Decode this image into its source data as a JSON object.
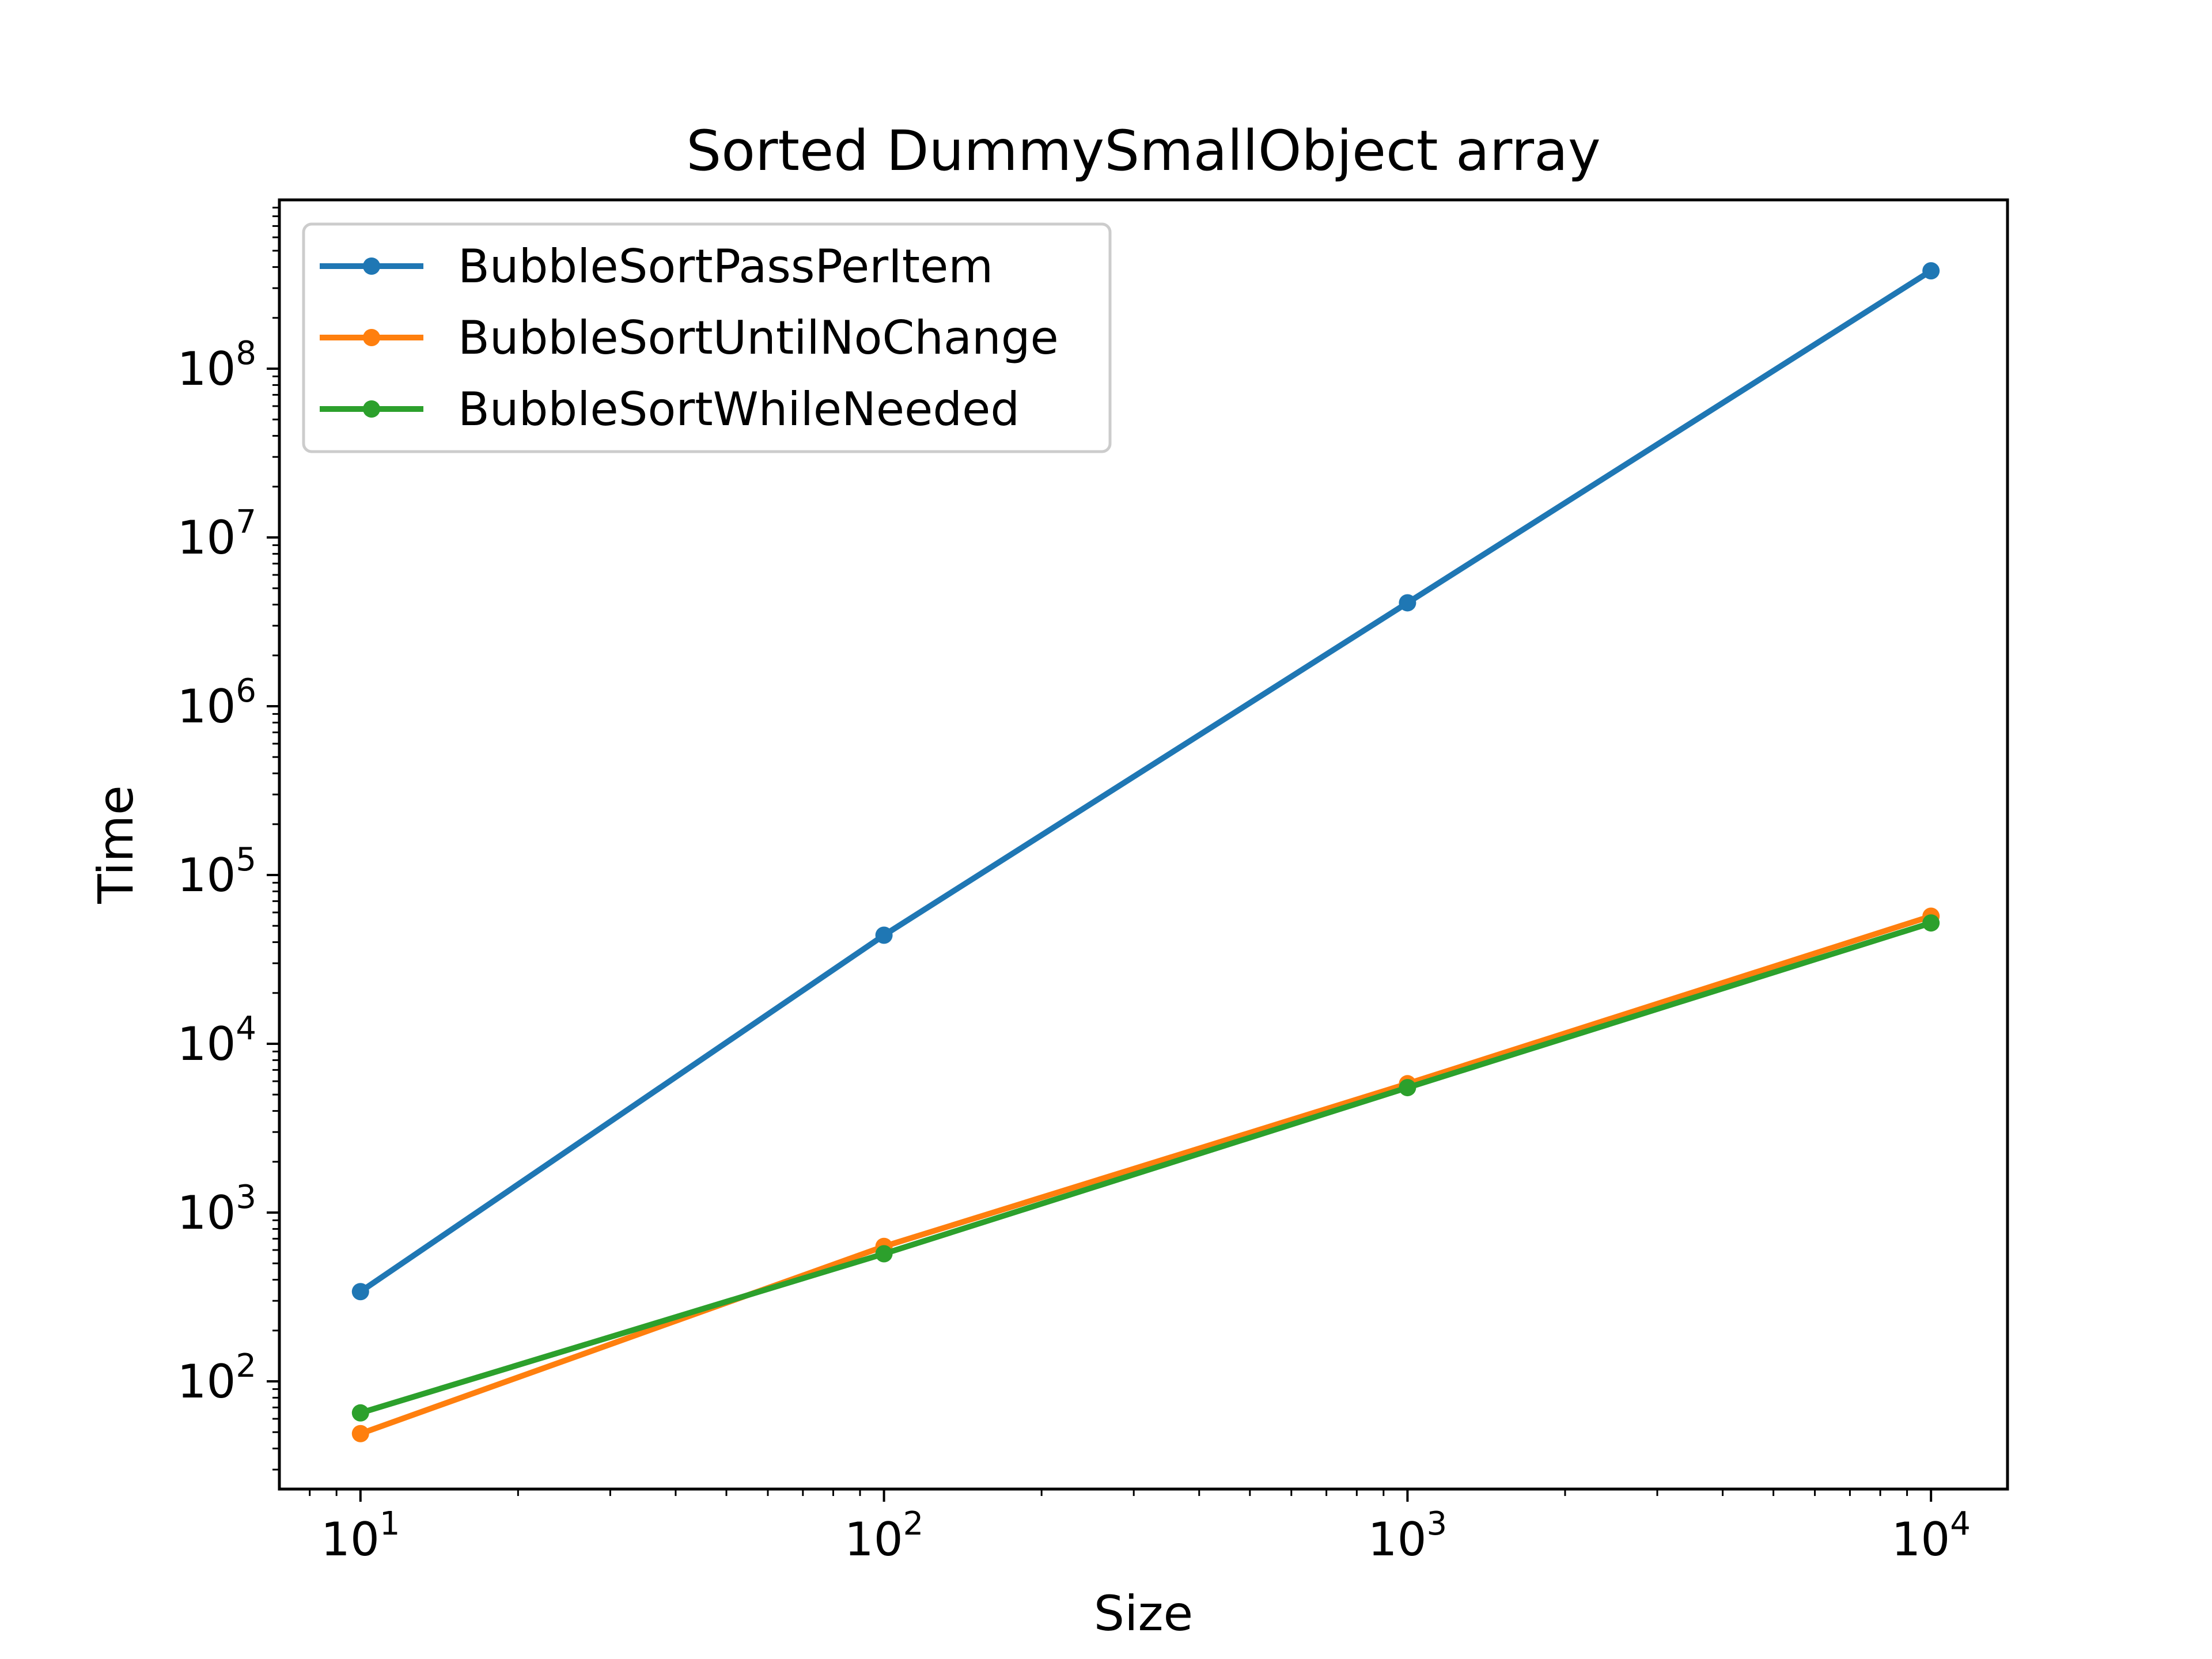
{
  "chart_data": {
    "type": "line",
    "title": "Sorted DummySmallObject array",
    "xlabel": "Size",
    "ylabel": "Time",
    "xscale": "log",
    "yscale": "log",
    "xlim": [
      7,
      14000
    ],
    "ylim": [
      23,
      1000000000
    ],
    "x": [
      10,
      100,
      1000,
      10000
    ],
    "xticks": [
      {
        "value": 10,
        "base": "10",
        "exp": "1"
      },
      {
        "value": 100,
        "base": "10",
        "exp": "2"
      },
      {
        "value": 1000,
        "base": "10",
        "exp": "3"
      },
      {
        "value": 10000,
        "base": "10",
        "exp": "4"
      }
    ],
    "yticks": [
      {
        "value": 100,
        "base": "10",
        "exp": "2"
      },
      {
        "value": 1000,
        "base": "10",
        "exp": "3"
      },
      {
        "value": 10000,
        "base": "10",
        "exp": "4"
      },
      {
        "value": 100000,
        "base": "10",
        "exp": "5"
      },
      {
        "value": 1000000,
        "base": "10",
        "exp": "6"
      },
      {
        "value": 10000000,
        "base": "10",
        "exp": "7"
      },
      {
        "value": 100000000,
        "base": "10",
        "exp": "8"
      }
    ],
    "grid": false,
    "legend_position": "top-left",
    "series": [
      {
        "name": "BubbleSortPassPerItem",
        "color": "#1f77b4",
        "values": [
          340,
          44000,
          4100000,
          380000000
        ]
      },
      {
        "name": "BubbleSortUntilNoChange",
        "color": "#ff7f0e",
        "values": [
          49,
          630,
          5800,
          57000
        ]
      },
      {
        "name": "BubbleSortWhileNeeded",
        "color": "#2ca02c",
        "values": [
          65,
          570,
          5500,
          52000
        ]
      }
    ]
  }
}
